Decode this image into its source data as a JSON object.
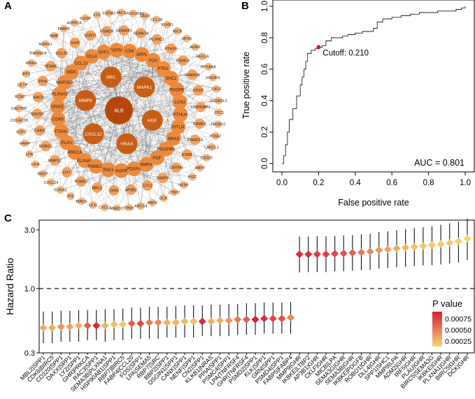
{
  "panels": {
    "a": "A",
    "b": "B",
    "c": "C"
  },
  "network": {
    "center": "ALB",
    "ring1": [
      "SRC",
      "MAPK1",
      "HGF",
      "HRAS",
      "CXCL12",
      "MMP9"
    ],
    "ring2": [
      "CD4",
      "SPP1",
      "FOS",
      "PTK2",
      "SHC1",
      "PDGFB",
      "LCN2",
      "PTHLH",
      "KITLG",
      "NRAS",
      "PDGFRB",
      "PGF",
      "BMP4",
      "PDGFA",
      "NGFR",
      "PAK1",
      "PSMD14",
      "PLXNA1",
      "PRKCA",
      "PLAU",
      "ITGAV",
      "CDK6",
      "GNAI1",
      "PLXNA3",
      "MAP2K2",
      "MDK",
      "CCL20",
      "OLL4",
      "DKK1",
      "FGFR4"
    ],
    "ring3": [
      "SEMA7A",
      "PLXNC1",
      "PTH1R",
      "PSMC4",
      "SEMA3B",
      "CD1D",
      "HSP90AB1",
      "PSMD2",
      "PSMD10",
      "ESM1",
      "CMTM4",
      "FABP4",
      "STC2",
      "AP3B1",
      "GRN",
      "MBL2",
      "PSME3",
      "OXT",
      "MMP12",
      "ROBO1",
      "CANX",
      "SOCS3",
      "RAC3",
      "PPIA",
      "SEMA5",
      "CCL25",
      "GHR",
      "SORT1",
      "PSMD4",
      "SEMA3G"
    ],
    "ring4": [
      "VAC1",
      "CDGS100A1",
      "DAXX",
      "CCL28",
      "KLKB1",
      "MICB",
      "RFX5",
      "ADM2",
      "REG1A",
      "RFXANK",
      "OSGIN1",
      "CKLF",
      "SCGB2L2",
      "STC1",
      "TMSB10",
      "PDIA2",
      "LANCL1",
      "CD320",
      "RBP7",
      "PGC",
      "NENF",
      "LTBP2",
      "DCK",
      "BBP2",
      "ABCC4",
      "TPM2",
      "MARCO",
      "CXCL1",
      "UCN",
      "BIRC5",
      "PI3",
      "S100A1",
      "CXCL14",
      "PAEP",
      "LIFR",
      "LPA",
      "HAMP",
      "GDF2",
      "COLEC10",
      "CACYBP",
      "FCN2",
      "CETP",
      "IRF5",
      "IKBKE",
      "TNFRSF4",
      "NDRG1",
      "NMB",
      "FABP5",
      "AVPR1A",
      "S100P",
      "LYZ",
      "S100A1"
    ]
  },
  "chart_data": [
    {
      "type": "line",
      "title": "",
      "xlabel": "False positive rate",
      "ylabel": "True positive rate",
      "xlim": [
        0,
        1
      ],
      "ylim": [
        0,
        1
      ],
      "xticks": [
        "0.0",
        "0.2",
        "0.4",
        "0.6",
        "0.8",
        "1.0"
      ],
      "yticks": [
        "0.0",
        "0.2",
        "0.4",
        "0.6",
        "0.8",
        "1.0"
      ],
      "x": [
        0,
        0.01,
        0.02,
        0.03,
        0.04,
        0.06,
        0.08,
        0.1,
        0.11,
        0.12,
        0.13,
        0.14,
        0.16,
        0.18,
        0.2,
        0.22,
        0.24,
        0.27,
        0.3,
        0.33,
        0.36,
        0.4,
        0.44,
        0.48,
        0.5,
        0.52,
        0.55,
        0.6,
        0.65,
        0.7,
        0.75,
        0.8,
        0.85,
        0.9,
        0.95,
        0.98,
        1.0
      ],
      "y": [
        0,
        0.05,
        0.12,
        0.2,
        0.28,
        0.35,
        0.43,
        0.5,
        0.55,
        0.6,
        0.65,
        0.7,
        0.72,
        0.73,
        0.74,
        0.75,
        0.78,
        0.8,
        0.8,
        0.81,
        0.82,
        0.83,
        0.84,
        0.84,
        0.86,
        0.9,
        0.92,
        0.93,
        0.94,
        0.95,
        0.96,
        0.96,
        0.97,
        0.97,
        0.98,
        0.99,
        1.0
      ],
      "cutoff": {
        "x": 0.2,
        "y": 0.74,
        "label": "Cutoff: 0.210"
      },
      "auc_label": "AUC = 0.801"
    },
    {
      "type": "scatter",
      "title": "",
      "xlabel": "",
      "ylabel": "Hazard Ratio",
      "ylim": [
        0.3,
        3.6
      ],
      "yscale": "log",
      "yticks": [
        "0.3",
        "1.0",
        "3.0"
      ],
      "reference_line": 1.0,
      "legend": {
        "title": "P value",
        "ticks": [
          "0.00075",
          "0.00050",
          "0.00025"
        ]
      },
      "categories": [
        "MBL2|SPP1",
        "CDK6|BIRC5",
        "CD320|SPP1",
        "DAXX|SPP1",
        "LYZ|SPP1",
        "GHR|PRKCA",
        "RAC3|SPP1",
        "SEMA3B|PLXNA1",
        "HSP90AB1|SPP1",
        "RBP7|BIRC5",
        "FABP4|CCL20",
        "FOS|SPP1",
        "LPA|SEMA5",
        "RBP7|SRC",
        "BBP2|SPP1",
        "OSGIN1|SPP1",
        "CANX|SPP1",
        "NENF|SPP1",
        "CN2|SPP1",
        "KLKB1|NRAS",
        "PPIA|SPP1",
        "PSMC4|SPP1",
        "LPA|TNFRSF4",
        "GHR|TNFRSF4",
        "PSMD2|SPP1",
        "KLK|SPP1",
        "GRN|SPP1",
        "PSMD4|SPP1",
        "FABP5|FABP4",
        "MMP9|GHR",
        "IKBKE|LTBP2",
        "AP3B1|GHR",
        "CKLF|GHR",
        "MICB|LPA",
        "SEMA3G|GHR",
        "SEMA3B|GHR",
        "IKBKE|PDGFB",
        "ROBO1|GHR",
        "DLL4|GHR",
        "SPP1|SHC1",
        "MMP9|LPA",
        "ADM2|GHR",
        "IRF5|GHR",
        "PLAU|GHR",
        "BIRC5|SEMA3G",
        "IKBKE|GHR",
        "PLXNA1|GHR",
        "BIRC5|GHR",
        "DCK|GHR"
      ],
      "hr": [
        0.48,
        0.48,
        0.49,
        0.49,
        0.5,
        0.5,
        0.5,
        0.5,
        0.51,
        0.51,
        0.52,
        0.52,
        0.53,
        0.53,
        0.53,
        0.53,
        0.54,
        0.54,
        0.54,
        0.54,
        0.55,
        0.55,
        0.56,
        0.56,
        0.56,
        0.57,
        0.57,
        0.57,
        0.58,
        1.9,
        1.9,
        1.9,
        1.9,
        1.92,
        1.93,
        1.95,
        1.97,
        2.0,
        2.05,
        2.08,
        2.12,
        2.15,
        2.18,
        2.22,
        2.25,
        2.3,
        2.35,
        2.42,
        2.55
      ],
      "lower": [
        0.36,
        0.36,
        0.37,
        0.37,
        0.37,
        0.38,
        0.38,
        0.37,
        0.38,
        0.38,
        0.39,
        0.39,
        0.39,
        0.39,
        0.4,
        0.4,
        0.4,
        0.4,
        0.41,
        0.41,
        0.41,
        0.41,
        0.42,
        0.42,
        0.42,
        0.43,
        0.43,
        0.43,
        0.43,
        1.35,
        1.36,
        1.36,
        1.36,
        1.38,
        1.38,
        1.4,
        1.41,
        1.42,
        1.45,
        1.47,
        1.49,
        1.5,
        1.52,
        1.54,
        1.55,
        1.57,
        1.6,
        1.63,
        1.7
      ],
      "upper": [
        0.65,
        0.65,
        0.66,
        0.66,
        0.67,
        0.67,
        0.67,
        0.68,
        0.68,
        0.69,
        0.7,
        0.7,
        0.71,
        0.71,
        0.71,
        0.72,
        0.73,
        0.73,
        0.73,
        0.74,
        0.74,
        0.75,
        0.75,
        0.76,
        0.76,
        0.77,
        0.77,
        0.77,
        0.78,
        2.65,
        2.65,
        2.66,
        2.66,
        2.68,
        2.7,
        2.72,
        2.76,
        2.8,
        2.88,
        2.92,
        2.98,
        3.05,
        3.1,
        3.15,
        3.2,
        3.3,
        3.4,
        3.5,
        3.7
      ],
      "pvalue": [
        0.0003,
        0.00032,
        0.0004,
        0.00035,
        0.0003,
        0.0006,
        0.0008,
        0.00028,
        0.00025,
        0.00022,
        0.0006,
        0.0007,
        0.0005,
        0.00045,
        0.0003,
        0.00028,
        0.00026,
        0.00025,
        0.0008,
        0.0003,
        0.0003,
        0.0004,
        0.0005,
        0.0006,
        0.00085,
        0.0008,
        0.0007,
        0.00065,
        0.00045,
        0.0008,
        0.0008,
        0.00075,
        0.00072,
        0.0007,
        0.00065,
        0.0006,
        0.0005,
        0.00045,
        0.0004,
        0.00035,
        0.0003,
        0.00028,
        0.00025,
        0.00022,
        0.0002,
        0.0002,
        0.0002,
        0.00018,
        0.00015
      ]
    }
  ]
}
